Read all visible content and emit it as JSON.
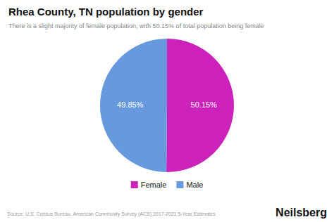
{
  "chart_data": {
    "type": "pie",
    "title": "Rhea County, TN population by gender",
    "subtitle": "There is a slight majority of female population, with 50.15% of total population being female",
    "categories": [
      "Female",
      "Male"
    ],
    "values": [
      50.15,
      49.85
    ],
    "value_labels": [
      "50.15%",
      "49.85%"
    ],
    "colors": [
      "#CC22BB",
      "#6699DD"
    ],
    "data_labels": true,
    "legend": "bottom",
    "annotations": [
      "Source: U.S. Census Bureau, American Community Survey (ACS) 2017-2021 5-Year Estimates",
      "Neilsberg"
    ]
  }
}
